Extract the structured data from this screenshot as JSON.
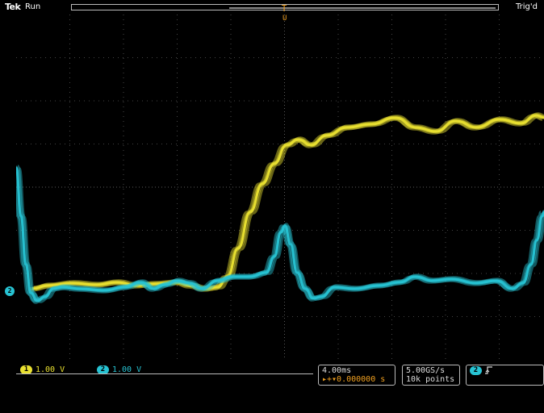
{
  "header": {
    "brand": "Tek",
    "acq_state": "Run",
    "trigger_status": "Trig'd",
    "trigger_position_marker": "T",
    "trigger_level_marker": "U"
  },
  "colors": {
    "ch1": "#e9e030",
    "ch2": "#27c3d3",
    "trigger": "#f0a020",
    "graticule": "#5a5a5a"
  },
  "graticule": {
    "divisions_x": 10,
    "divisions_y": 8
  },
  "channels": [
    {
      "number": "1",
      "scale": "1.00 V",
      "color": "#e9e030"
    },
    {
      "number": "2",
      "scale": "1.00 V",
      "color": "#27c3d3"
    }
  ],
  "ground_marker": "2",
  "timebase": {
    "scale": "4.00ms",
    "trigger_position": "▸+▾0.000000 s"
  },
  "acquisition": {
    "sample_rate": "5.00GS/s",
    "record_length": "10k points"
  },
  "trigger": {
    "source": "2",
    "slope_icon": "rising-edge-icon"
  }
}
